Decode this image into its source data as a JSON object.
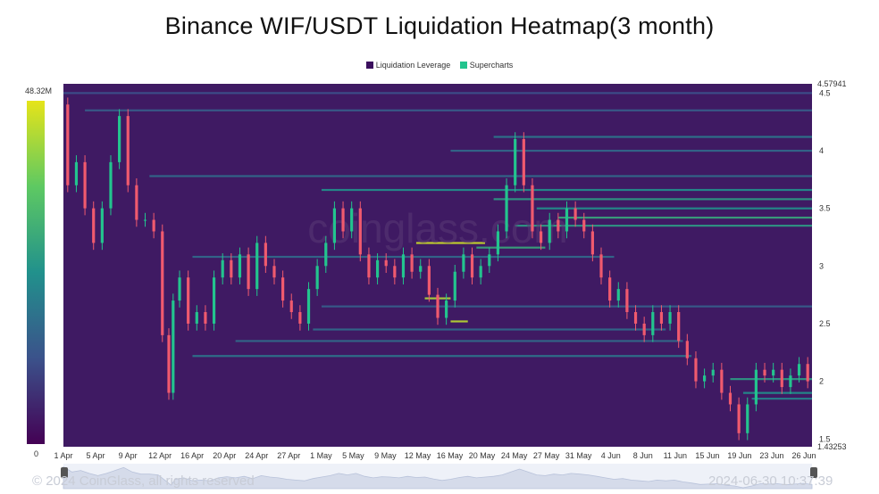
{
  "chart_data": {
    "type": "heatmap",
    "title": "Binance WIF/USDT Liquidation Heatmap(3 month)",
    "legend": [
      {
        "label": "Liquidation Leverage",
        "color": "#3b0f5e"
      },
      {
        "label": "Supercharts",
        "color": "#23c48e"
      }
    ],
    "colorbar": {
      "max_label": "48.32M",
      "min_label": "0",
      "max": 48.32,
      "min": 0,
      "unit": "M"
    },
    "x_ticks": [
      "1 Apr",
      "5 Apr",
      "9 Apr",
      "12 Apr",
      "16 Apr",
      "20 Apr",
      "24 Apr",
      "27 Apr",
      "1 May",
      "5 May",
      "9 May",
      "12 May",
      "16 May",
      "20 May",
      "24 May",
      "27 May",
      "31 May",
      "4 Jun",
      "8 Jun",
      "11 Jun",
      "15 Jun",
      "19 Jun",
      "23 Jun",
      "26 Jun"
    ],
    "y_ticks": [
      "4.5",
      "4",
      "3.5",
      "3",
      "2.5",
      "2",
      "1.5"
    ],
    "y_top_label": "4.57941",
    "y_bottom_label": "1.43253",
    "ylim": [
      1.43253,
      4.57941
    ],
    "price_path": [
      [
        0,
        4.4
      ],
      [
        2,
        3.7
      ],
      [
        4,
        3.9
      ],
      [
        6,
        3.5
      ],
      [
        8,
        3.2
      ],
      [
        10,
        3.5
      ],
      [
        12,
        3.9
      ],
      [
        14,
        4.3
      ],
      [
        16,
        3.7
      ],
      [
        18,
        3.4
      ],
      [
        20,
        3.4
      ],
      [
        22,
        3.3
      ],
      [
        24,
        2.4
      ],
      [
        25,
        1.9
      ],
      [
        26,
        2.7
      ],
      [
        28,
        2.9
      ],
      [
        30,
        2.5
      ],
      [
        32,
        2.6
      ],
      [
        34,
        2.5
      ],
      [
        36,
        2.9
      ],
      [
        38,
        3.05
      ],
      [
        40,
        2.9
      ],
      [
        42,
        3.1
      ],
      [
        44,
        2.8
      ],
      [
        46,
        3.2
      ],
      [
        48,
        3.0
      ],
      [
        50,
        2.9
      ],
      [
        52,
        2.7
      ],
      [
        54,
        2.6
      ],
      [
        56,
        2.5
      ],
      [
        58,
        2.8
      ],
      [
        60,
        3.0
      ],
      [
        62,
        3.2
      ],
      [
        64,
        3.5
      ],
      [
        66,
        3.3
      ],
      [
        68,
        3.5
      ],
      [
        70,
        3.1
      ],
      [
        72,
        2.9
      ],
      [
        74,
        3.05
      ],
      [
        76,
        3.0
      ],
      [
        78,
        2.9
      ],
      [
        80,
        3.1
      ],
      [
        82,
        2.95
      ],
      [
        84,
        3.0
      ],
      [
        86,
        2.75
      ],
      [
        88,
        2.55
      ],
      [
        90,
        2.7
      ],
      [
        92,
        2.95
      ],
      [
        94,
        3.1
      ],
      [
        96,
        2.9
      ],
      [
        98,
        3.0
      ],
      [
        100,
        3.1
      ],
      [
        102,
        3.3
      ],
      [
        104,
        3.7
      ],
      [
        106,
        4.1
      ],
      [
        108,
        3.7
      ],
      [
        110,
        3.3
      ],
      [
        112,
        3.2
      ],
      [
        114,
        3.4
      ],
      [
        116,
        3.3
      ],
      [
        118,
        3.5
      ],
      [
        120,
        3.4
      ],
      [
        122,
        3.3
      ],
      [
        124,
        3.1
      ],
      [
        126,
        2.9
      ],
      [
        128,
        2.7
      ],
      [
        130,
        2.8
      ],
      [
        132,
        2.6
      ],
      [
        134,
        2.5
      ],
      [
        136,
        2.4
      ],
      [
        138,
        2.6
      ],
      [
        140,
        2.5
      ],
      [
        142,
        2.6
      ],
      [
        144,
        2.35
      ],
      [
        146,
        2.2
      ],
      [
        148,
        2.0
      ],
      [
        150,
        2.05
      ],
      [
        152,
        2.1
      ],
      [
        154,
        1.9
      ],
      [
        156,
        1.8
      ],
      [
        158,
        1.55
      ],
      [
        160,
        1.8
      ],
      [
        162,
        2.1
      ],
      [
        164,
        2.05
      ],
      [
        166,
        2.1
      ],
      [
        168,
        1.95
      ],
      [
        170,
        2.05
      ],
      [
        172,
        2.15
      ],
      [
        174,
        2.0
      ]
    ],
    "liquidation_levels": [
      {
        "price": 4.5,
        "x0": 0,
        "x1": 174,
        "intensity": 0.25
      },
      {
        "price": 4.35,
        "x0": 5,
        "x1": 174,
        "intensity": 0.3
      },
      {
        "price": 4.12,
        "x0": 100,
        "x1": 174,
        "intensity": 0.4
      },
      {
        "price": 4.0,
        "x0": 90,
        "x1": 174,
        "intensity": 0.35
      },
      {
        "price": 3.78,
        "x0": 20,
        "x1": 174,
        "intensity": 0.35
      },
      {
        "price": 3.66,
        "x0": 60,
        "x1": 174,
        "intensity": 0.5
      },
      {
        "price": 3.58,
        "x0": 100,
        "x1": 174,
        "intensity": 0.55
      },
      {
        "price": 3.5,
        "x0": 110,
        "x1": 174,
        "intensity": 0.5
      },
      {
        "price": 3.42,
        "x0": 115,
        "x1": 174,
        "intensity": 0.6
      },
      {
        "price": 3.35,
        "x0": 105,
        "x1": 174,
        "intensity": 0.55
      },
      {
        "price": 3.2,
        "x0": 82,
        "x1": 98,
        "intensity": 0.95
      },
      {
        "price": 3.16,
        "x0": 96,
        "x1": 112,
        "intensity": 0.6
      },
      {
        "price": 3.08,
        "x0": 30,
        "x1": 128,
        "intensity": 0.35
      },
      {
        "price": 2.72,
        "x0": 84,
        "x1": 90,
        "intensity": 0.9
      },
      {
        "price": 2.65,
        "x0": 60,
        "x1": 174,
        "intensity": 0.3
      },
      {
        "price": 2.52,
        "x0": 90,
        "x1": 94,
        "intensity": 0.92
      },
      {
        "price": 2.45,
        "x0": 58,
        "x1": 140,
        "intensity": 0.35
      },
      {
        "price": 2.35,
        "x0": 40,
        "x1": 144,
        "intensity": 0.35
      },
      {
        "price": 2.22,
        "x0": 30,
        "x1": 146,
        "intensity": 0.4
      },
      {
        "price": 2.02,
        "x0": 155,
        "x1": 174,
        "intensity": 0.55
      },
      {
        "price": 1.9,
        "x0": 158,
        "x1": 174,
        "intensity": 0.5
      },
      {
        "price": 1.85,
        "x0": 160,
        "x1": 174,
        "intensity": 0.45
      }
    ],
    "watermark": "coinglass.com",
    "grid": false
  },
  "footer": {
    "copyright": "© 2024 CoinGlass, all rights reserved",
    "timestamp": "2024-06-30 10:37:39"
  }
}
